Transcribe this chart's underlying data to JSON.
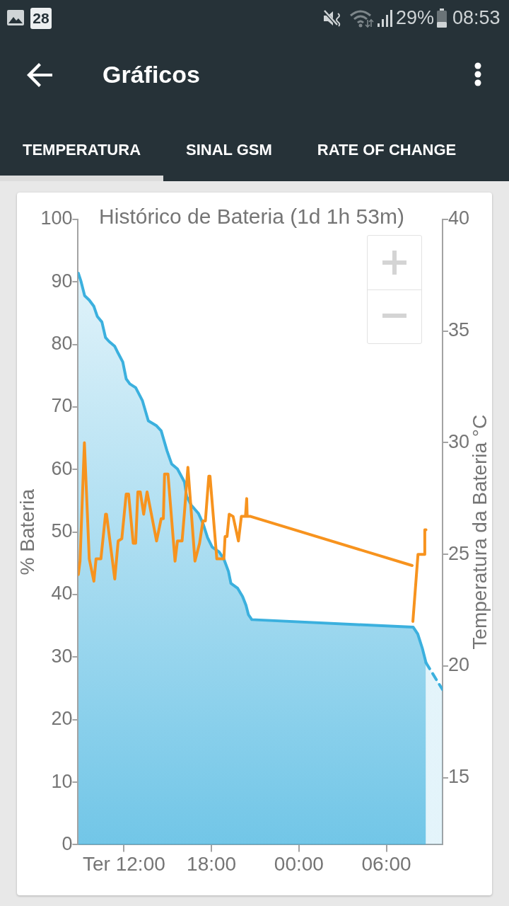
{
  "chart_data": {
    "type": "area",
    "title": "Histórico de Bateria (1d 1h 53m)",
    "ylabel": "% Bateria",
    "y2label": "Temperatura da Bateria °C",
    "xlim": [
      "--02-27T08:51",
      "--02-28T09:51"
    ],
    "xticks": [
      {
        "value": "--02-27T12:00",
        "label": "Ter 12:00"
      },
      {
        "value": "--02-27T18:00",
        "label": "18:00"
      },
      {
        "value": "--02-28T00:00",
        "label": "00:00"
      },
      {
        "value": "--02-28T06:00",
        "label": "06:00"
      }
    ],
    "ylim": [
      0,
      100
    ],
    "yticks": [
      0,
      10,
      20,
      30,
      40,
      50,
      60,
      70,
      80,
      90,
      100
    ],
    "y2lim": [
      12,
      40
    ],
    "y2ticks": [
      15,
      20,
      25,
      30,
      35,
      40
    ],
    "grid": false,
    "series": [
      {
        "color": "#3bb0de",
        "x": [
          "--02-27T08:52",
          "--02-27T09:03",
          "--02-27T09:18",
          "--02-27T09:37",
          "--02-27T09:56",
          "--02-27T10:10",
          "--02-27T10:29",
          "--02-27T10:44",
          "--02-27T10:58",
          "--02-27T11:22",
          "--02-27T11:36",
          "--02-27T11:55",
          "--02-27T12:09",
          "--02-27T12:24",
          "--02-27T12:48",
          "--02-27T13:16",
          "--02-27T13:40",
          "--02-27T14:14",
          "--02-27T14:33",
          "--02-27T14:57",
          "--02-27T15:16",
          "--02-27T15:40",
          "--02-27T16:09",
          "--02-27T16:18",
          "--02-27T16:37",
          "--02-27T17:06",
          "--02-27T17:25",
          "--02-27T17:44",
          "--02-27T18:03",
          "--02-27T18:32",
          "--02-27T18:51",
          "--02-27T19:10",
          "--02-27T19:20",
          "--02-27T19:48",
          "--02-27T20:08",
          "--02-27T20:22",
          "--02-27T20:32",
          "--02-27T20:46",
          "--02-28T04:01",
          "--02-28T07:50",
          "--02-28T08:09",
          "--02-28T08:28",
          "--02-28T08:43"
        ],
        "values": [
          91.4,
          90.1,
          87.8,
          87.1,
          86.1,
          84.5,
          83.6,
          81.1,
          80.5,
          79.7,
          78.6,
          77.2,
          74.5,
          73.7,
          73.1,
          71.0,
          67.8,
          67.0,
          66.2,
          63.0,
          60.9,
          60.1,
          58.0,
          55.7,
          54.3,
          53.0,
          51.4,
          49.1,
          47.6,
          46.8,
          45.7,
          43.7,
          41.8,
          41.0,
          39.7,
          38.3,
          36.8,
          36.0,
          35.2,
          34.8,
          33.7,
          31.4,
          29.1
        ]
      },
      {
        "color": "#3bb0de",
        "line_style": "dashed",
        "x": [
          "--02-28T08:43",
          "--02-28T09:51"
        ],
        "values": [
          29.1,
          24.8
        ]
      },
      {
        "type": "line",
        "color": "#f7931e",
        "axis": "y2",
        "x": [
          "--02-27T08:52",
          "--02-27T08:59",
          "--02-27T09:17",
          "--02-27T09:37",
          "--02-27T09:56",
          "--02-27T10:05",
          "--02-27T10:25",
          "--02-27T10:44",
          "--02-27T10:48",
          "--02-27T11:22",
          "--02-27T11:36",
          "--02-27T11:51",
          "--02-27T12:00",
          "--02-27T12:09",
          "--02-27T12:19",
          "--02-27T12:38",
          "--02-27T12:48",
          "--02-27T12:57",
          "--02-27T13:07",
          "--02-27T13:21",
          "--02-27T13:35",
          "--02-27T14:14",
          "--02-27T14:33",
          "--02-27T14:42",
          "--02-27T14:47",
          "--02-27T15:01",
          "--02-27T15:30",
          "--02-27T15:40",
          "--02-27T15:59",
          "--02-27T16:09",
          "--02-27T16:23",
          "--02-27T16:52",
          "--02-27T17:11",
          "--02-27T17:25",
          "--02-27T17:35",
          "--02-27T17:49",
          "--02-27T17:54",
          "--02-27T18:22",
          "--02-27T18:51",
          "--02-27T18:56",
          "--02-27T19:04",
          "--02-27T19:13",
          "--02-27T19:29",
          "--02-27T19:39",
          "--02-27T19:51",
          "--02-27T20:03",
          "--02-27T20:20",
          "--02-27T20:25",
          "--02-27T20:27",
          "--02-27T20:41",
          "--02-28T07:46",
          "--02-28T07:47",
          "--02-28T07:49",
          "--02-28T07:56",
          "--02-28T08:10",
          "--02-28T08:37",
          "--02-28T08:38",
          "--02-28T08:43"
        ],
        "values": [
          24.1,
          24.7,
          30.0,
          24.8,
          23.8,
          24.8,
          24.8,
          26.8,
          26.8,
          23.9,
          25.6,
          25.7,
          26.7,
          27.7,
          27.7,
          25.5,
          25.5,
          27.8,
          27.8,
          26.8,
          27.8,
          25.6,
          26.6,
          26.6,
          28.6,
          28.6,
          24.7,
          25.6,
          25.6,
          26.9,
          28.9,
          24.7,
          25.5,
          26.5,
          26.5,
          28.5,
          28.5,
          24.8,
          24.8,
          25.8,
          25.8,
          26.8,
          26.7,
          26.2,
          25.6,
          26.7,
          26.7,
          27.5,
          26.7,
          26.7,
          24.5,
          null,
          22.0,
          23.0,
          25.0,
          25.0,
          26.1,
          26.1
        ]
      }
    ],
    "annotations": [
      "28",
      "29%",
      "08:53",
      "Gráficos",
      "TEMPERATURA",
      "SINAL GSM",
      "RATE OF CHANGE"
    ]
  }
}
